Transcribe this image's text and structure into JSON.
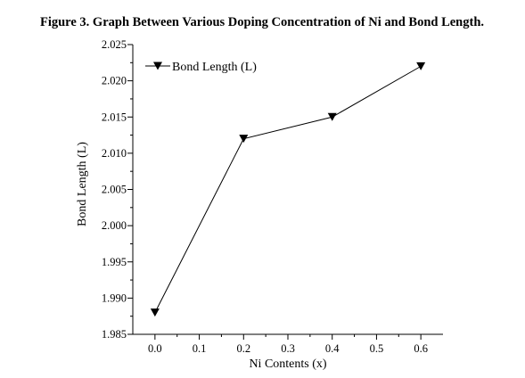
{
  "figure_title": "Figure 3. Graph Between Various Doping Concentration of Ni and Bond Length.",
  "chart_data": {
    "type": "line",
    "title": "",
    "xlabel": "Ni Contents (x)",
    "ylabel": "Bond Length (L)",
    "xlim": [
      -0.05,
      0.65
    ],
    "ylim": [
      1.985,
      2.025
    ],
    "xticks": [
      0.0,
      0.1,
      0.2,
      0.3,
      0.4,
      0.5,
      0.6
    ],
    "xtick_labels": [
      "0.0",
      "0.1",
      "0.2",
      "0.3",
      "0.4",
      "0.5",
      "0.6"
    ],
    "yticks": [
      1.985,
      1.99,
      1.995,
      2.0,
      2.005,
      2.01,
      2.015,
      2.02,
      2.025
    ],
    "ytick_labels": [
      "1.985",
      "1.990",
      "1.995",
      "2.000",
      "2.005",
      "2.010",
      "2.015",
      "2.020",
      "2.025"
    ],
    "grid": false,
    "legend_position": "top-left",
    "series": [
      {
        "name": "Bond Length (L)",
        "marker": "down-triangle",
        "color": "#000000",
        "x": [
          0.0,
          0.2,
          0.4,
          0.6
        ],
        "y": [
          1.988,
          2.012,
          2.015,
          2.022
        ]
      }
    ]
  }
}
